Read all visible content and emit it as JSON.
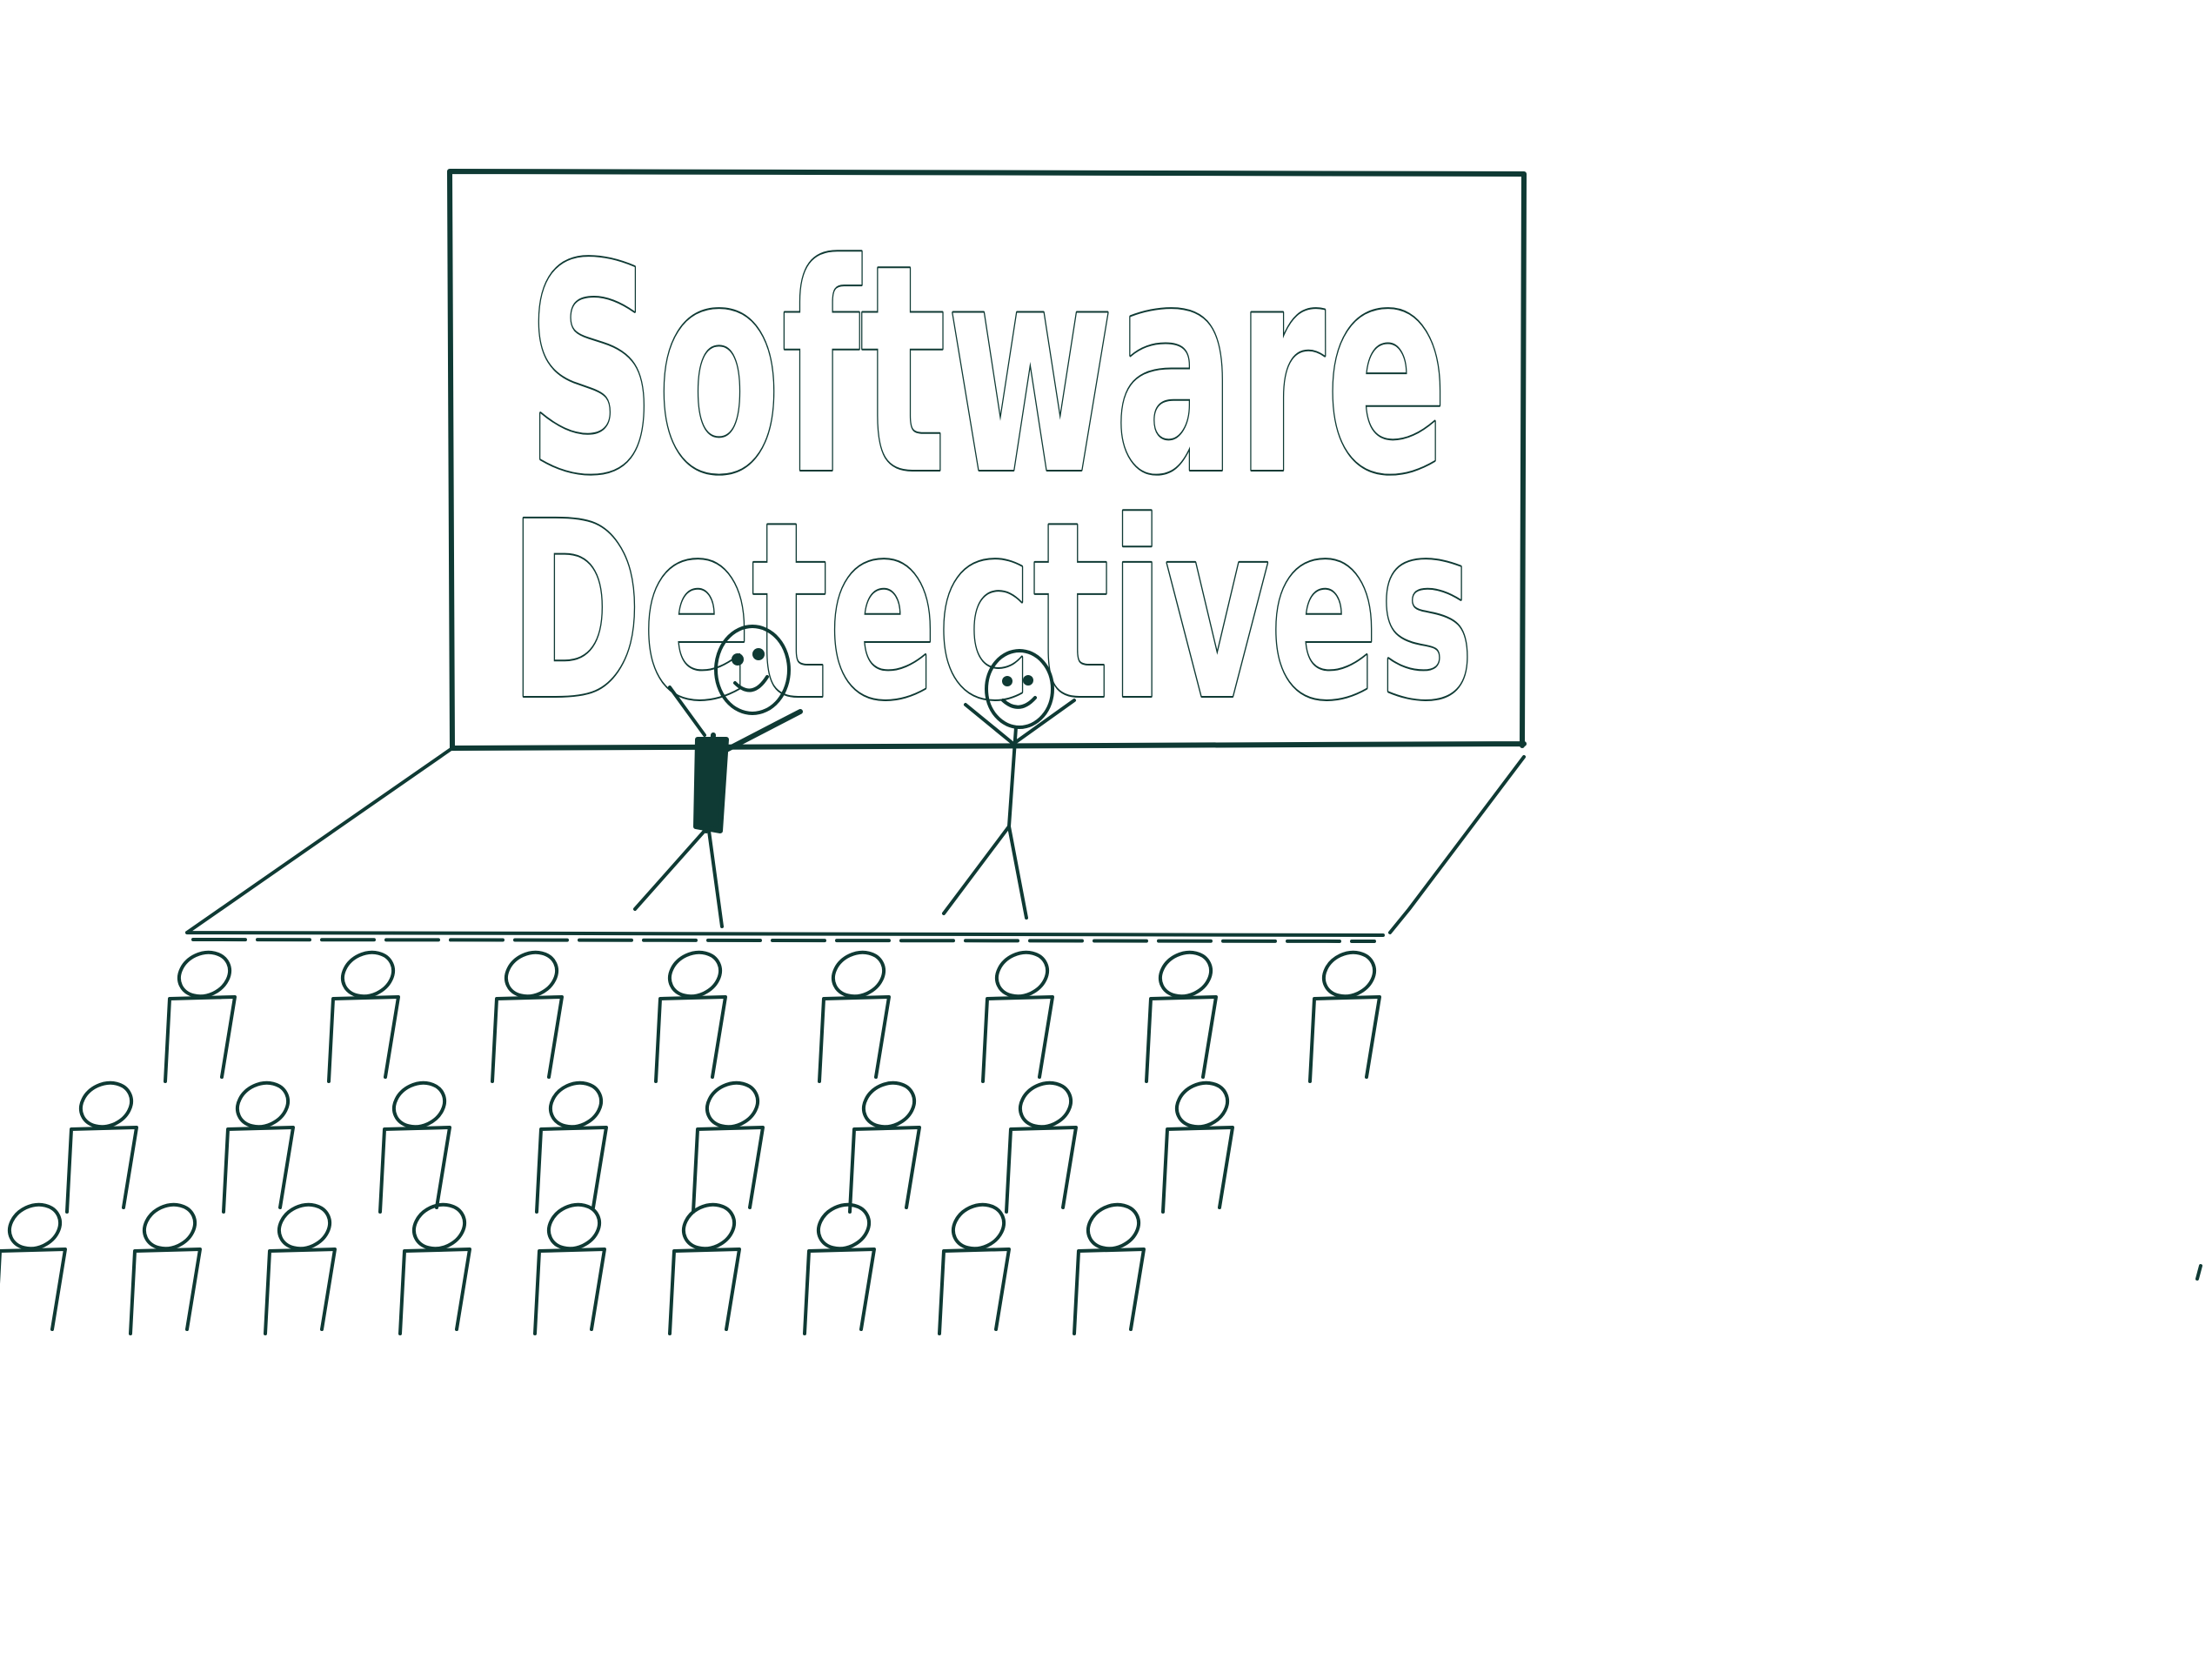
{
  "banner": {
    "line1": "Software",
    "line2": "Detectives"
  },
  "colors": {
    "ink": "#0f3a34",
    "paper": "#ffffff"
  },
  "audience": {
    "rows": 3,
    "counts": [
      8,
      8,
      9
    ]
  }
}
